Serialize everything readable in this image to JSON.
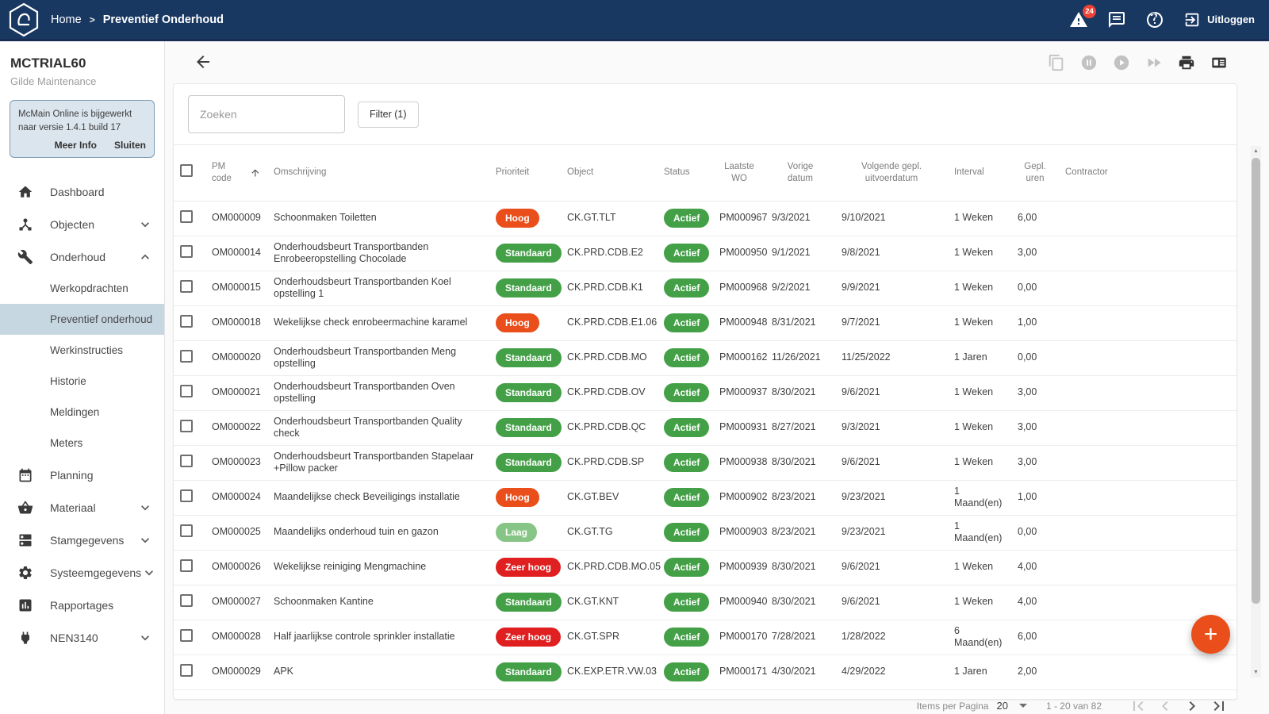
{
  "topbar": {
    "breadcrumb_home": "Home",
    "breadcrumb_sep": ">",
    "breadcrumb_current": "Preventief Onderhoud",
    "alerts_badge": "24",
    "logout_label": "Uitloggen"
  },
  "sidebar": {
    "company": "MCTRIAL60",
    "subtitle": "Gilde Maintenance",
    "notice": {
      "text": "McMain Online is bijgewerkt naar versie 1.4.1 build 17",
      "more_info": "Meer Info",
      "close": "Sluiten"
    },
    "menu": {
      "dashboard": "Dashboard",
      "objecten": "Objecten",
      "onderhoud": "Onderhoud",
      "werkopdrachten": "Werkopdrachten",
      "preventief_onderhoud": "Preventief onderhoud",
      "werkinstructies": "Werkinstructies",
      "historie": "Historie",
      "meldingen": "Meldingen",
      "meters": "Meters",
      "planning": "Planning",
      "materiaal": "Materiaal",
      "stamgegevens": "Stamgegevens",
      "systeemgegevens": "Systeemgegevens",
      "rapportages": "Rapportages",
      "nen3140": "NEN3140"
    }
  },
  "filters": {
    "search_placeholder": "Zoeken",
    "filter_label": "Filter (1)"
  },
  "colors": {
    "topbar": "#183862",
    "accent": "#E94E1B",
    "hoog": "#E94E1B",
    "standaard": "#43A047",
    "laag": "#87C587",
    "zeer_hoog": "#E02020",
    "actief": "#43A047",
    "badge_red": "#EF4136",
    "active_item_bg": "#c7d7e2"
  },
  "table": {
    "columns": [
      {
        "label": ""
      },
      {
        "label": "PM code"
      },
      {
        "label": "Omschrijving"
      },
      {
        "label": "Prioriteit"
      },
      {
        "label": "Object"
      },
      {
        "label": "Status"
      },
      {
        "label": "Laatste\nWO"
      },
      {
        "label": "Vorige\ndatum"
      },
      {
        "label": "Volgende gepl.\nuitvoerdatum"
      },
      {
        "label": "Interval"
      },
      {
        "label": "Gepl.\nuren"
      },
      {
        "label": "Contractor"
      }
    ],
    "rows": [
      {
        "pm_code": "OM000009",
        "description": "Schoonmaken Toiletten",
        "priority": "Hoog",
        "priority_key": "hoog",
        "object": "CK.GT.TLT",
        "status": "Actief",
        "status_key": "actief",
        "last_wo": "PM000967",
        "previous_date": "9/3/2021",
        "next_date": "9/10/2021",
        "interval": "1 Weken",
        "planned_hours": "6,00",
        "contractor": ""
      },
      {
        "pm_code": "OM000014",
        "description": "Onderhoudsbeurt Transportbanden Enrobeeropstelling Chocolade",
        "priority": "Standaard",
        "priority_key": "standaard",
        "object": "CK.PRD.CDB.E2",
        "status": "Actief",
        "status_key": "actief",
        "last_wo": "PM000950",
        "previous_date": "9/1/2021",
        "next_date": "9/8/2021",
        "interval": "1 Weken",
        "planned_hours": "3,00",
        "contractor": ""
      },
      {
        "pm_code": "OM000015",
        "description": "Onderhoudsbeurt Transportbanden Koel opstelling 1",
        "priority": "Standaard",
        "priority_key": "standaard",
        "object": "CK.PRD.CDB.K1",
        "status": "Actief",
        "status_key": "actief",
        "last_wo": "PM000968",
        "previous_date": "9/2/2021",
        "next_date": "9/9/2021",
        "interval": "1 Weken",
        "planned_hours": "0,00",
        "contractor": ""
      },
      {
        "pm_code": "OM000018",
        "description": "Wekelijkse check enrobeermachine karamel",
        "priority": "Hoog",
        "priority_key": "hoog",
        "object": "CK.PRD.CDB.E1.06",
        "status": "Actief",
        "status_key": "actief",
        "last_wo": "PM000948",
        "previous_date": "8/31/2021",
        "next_date": "9/7/2021",
        "interval": "1 Weken",
        "planned_hours": "1,00",
        "contractor": ""
      },
      {
        "pm_code": "OM000020",
        "description": "Onderhoudsbeurt Transportbanden Meng opstelling",
        "priority": "Standaard",
        "priority_key": "standaard",
        "object": "CK.PRD.CDB.MO",
        "status": "Actief",
        "status_key": "actief",
        "last_wo": "PM000162",
        "previous_date": "11/26/2021",
        "next_date": "11/25/2022",
        "interval": "1 Jaren",
        "planned_hours": "0,00",
        "contractor": ""
      },
      {
        "pm_code": "OM000021",
        "description": "Onderhoudsbeurt Transportbanden Oven opstelling",
        "priority": "Standaard",
        "priority_key": "standaard",
        "object": "CK.PRD.CDB.OV",
        "status": "Actief",
        "status_key": "actief",
        "last_wo": "PM000937",
        "previous_date": "8/30/2021",
        "next_date": "9/6/2021",
        "interval": "1 Weken",
        "planned_hours": "3,00",
        "contractor": ""
      },
      {
        "pm_code": "OM000022",
        "description": "Onderhoudsbeurt Transportbanden Quality check",
        "priority": "Standaard",
        "priority_key": "standaard",
        "object": "CK.PRD.CDB.QC",
        "status": "Actief",
        "status_key": "actief",
        "last_wo": "PM000931",
        "previous_date": "8/27/2021",
        "next_date": "9/3/2021",
        "interval": "1 Weken",
        "planned_hours": "3,00",
        "contractor": ""
      },
      {
        "pm_code": "OM000023",
        "description": "Onderhoudsbeurt Transportbanden Stapelaar +Pillow packer",
        "priority": "Standaard",
        "priority_key": "standaard",
        "object": "CK.PRD.CDB.SP",
        "status": "Actief",
        "status_key": "actief",
        "last_wo": "PM000938",
        "previous_date": "8/30/2021",
        "next_date": "9/6/2021",
        "interval": "1 Weken",
        "planned_hours": "3,00",
        "contractor": ""
      },
      {
        "pm_code": "OM000024",
        "description": "Maandelijkse check Beveiligings installatie",
        "priority": "Hoog",
        "priority_key": "hoog",
        "object": "CK.GT.BEV",
        "status": "Actief",
        "status_key": "actief",
        "last_wo": "PM000902",
        "previous_date": "8/23/2021",
        "next_date": "9/23/2021",
        "interval": "1 Maand(en)",
        "planned_hours": "1,00",
        "contractor": ""
      },
      {
        "pm_code": "OM000025",
        "description": "Maandelijks onderhoud tuin en gazon",
        "priority": "Laag",
        "priority_key": "laag",
        "object": "CK.GT.TG",
        "status": "Actief",
        "status_key": "actief",
        "last_wo": "PM000903",
        "previous_date": "8/23/2021",
        "next_date": "9/23/2021",
        "interval": "1 Maand(en)",
        "planned_hours": "0,00",
        "contractor": ""
      },
      {
        "pm_code": "OM000026",
        "description": "Wekelijkse reiniging Mengmachine",
        "priority": "Zeer hoog",
        "priority_key": "zeer_hoog",
        "object": "CK.PRD.CDB.MO.05",
        "status": "Actief",
        "status_key": "actief",
        "last_wo": "PM000939",
        "previous_date": "8/30/2021",
        "next_date": "9/6/2021",
        "interval": "1 Weken",
        "planned_hours": "4,00",
        "contractor": ""
      },
      {
        "pm_code": "OM000027",
        "description": "Schoonmaken Kantine",
        "priority": "Standaard",
        "priority_key": "standaard",
        "object": "CK.GT.KNT",
        "status": "Actief",
        "status_key": "actief",
        "last_wo": "PM000940",
        "previous_date": "8/30/2021",
        "next_date": "9/6/2021",
        "interval": "1 Weken",
        "planned_hours": "4,00",
        "contractor": ""
      },
      {
        "pm_code": "OM000028",
        "description": "Half jaarlijkse controle sprinkler installatie",
        "priority": "Zeer hoog",
        "priority_key": "zeer_hoog",
        "object": "CK.GT.SPR",
        "status": "Actief",
        "status_key": "actief",
        "last_wo": "PM000170",
        "previous_date": "7/28/2021",
        "next_date": "1/28/2022",
        "interval": "6 Maand(en)",
        "planned_hours": "6,00",
        "contractor": ""
      },
      {
        "pm_code": "OM000029",
        "description": "APK",
        "priority": "Standaard",
        "priority_key": "standaard",
        "object": "CK.EXP.ETR.VW.03",
        "status": "Actief",
        "status_key": "actief",
        "last_wo": "PM000171",
        "previous_date": "4/30/2021",
        "next_date": "4/29/2022",
        "interval": "1 Jaren",
        "planned_hours": "2,00",
        "contractor": ""
      }
    ]
  },
  "pagination": {
    "items_per_page_label": "Items per Pagina",
    "items_per_page_value": "20",
    "range_label": "1 - 20 van 82"
  },
  "fab": {
    "label": "+"
  }
}
